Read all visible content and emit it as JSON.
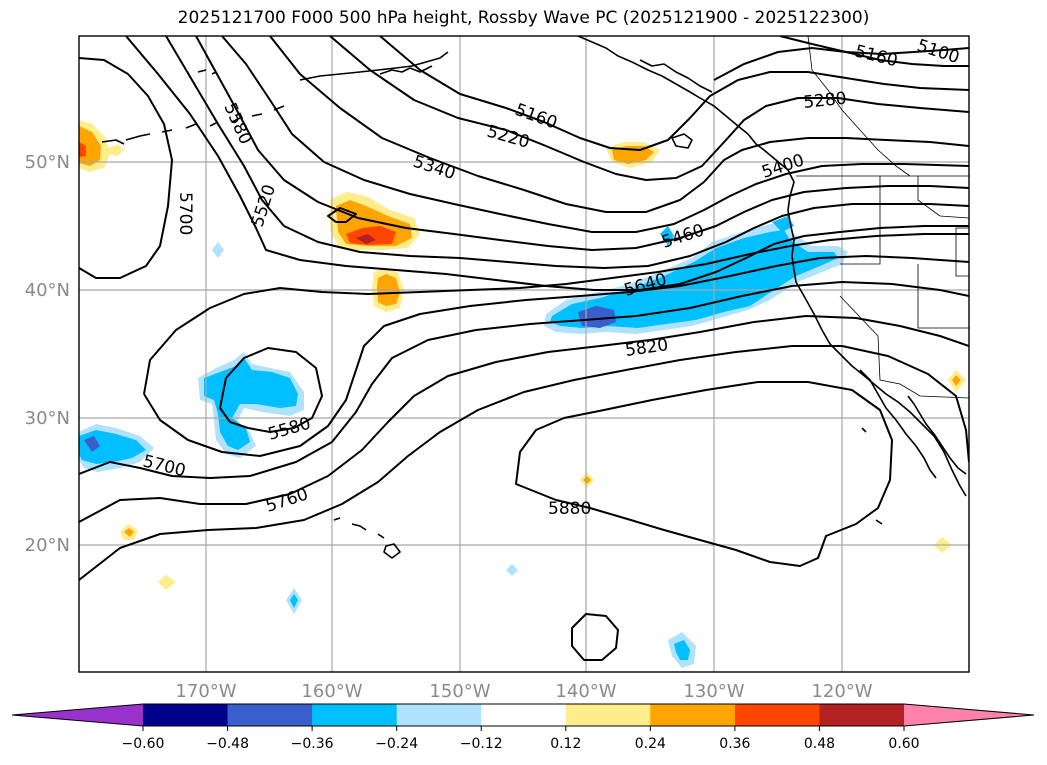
{
  "title": "2025121700 F000 500 hPa height, Rossby Wave PC (2025121900 - 2025122300)",
  "axes": {
    "lon_labels": [
      "170°W",
      "160°W",
      "150°W",
      "140°W",
      "130°W",
      "120°W"
    ],
    "lat_labels": [
      "50°N",
      "40°N",
      "30°N",
      "20°N"
    ]
  },
  "contour_labels": [
    "5100",
    "5160",
    "5160",
    "5220",
    "5280",
    "5340",
    "5400",
    "5460",
    "5520",
    "5580",
    "5580",
    "5640",
    "5700",
    "5700",
    "5760",
    "5820",
    "5880"
  ],
  "colorbar": {
    "ticks": [
      "−0.60",
      "−0.48",
      "−0.36",
      "−0.24",
      "−0.12",
      "0.12",
      "0.24",
      "0.36",
      "0.48",
      "0.60"
    ],
    "colors": [
      "#9932cc",
      "#00008b",
      "#3a5fcd",
      "#00bfff",
      "#b0e2ff",
      "#ffffff",
      "#ffec8b",
      "#ffa500",
      "#ff4500",
      "#b22222",
      "#ff82ab"
    ],
    "under_color": "#9932cc",
    "over_color": "#ff82ab"
  },
  "colors": {
    "neg_light": "#b0e2ff",
    "neg_mid": "#00bfff",
    "neg_strong": "#3a5fcd",
    "pos_light": "#ffec8b",
    "pos_mid": "#ffa500",
    "pos_strong": "#ff4500",
    "pos_max": "#b22222"
  }
}
